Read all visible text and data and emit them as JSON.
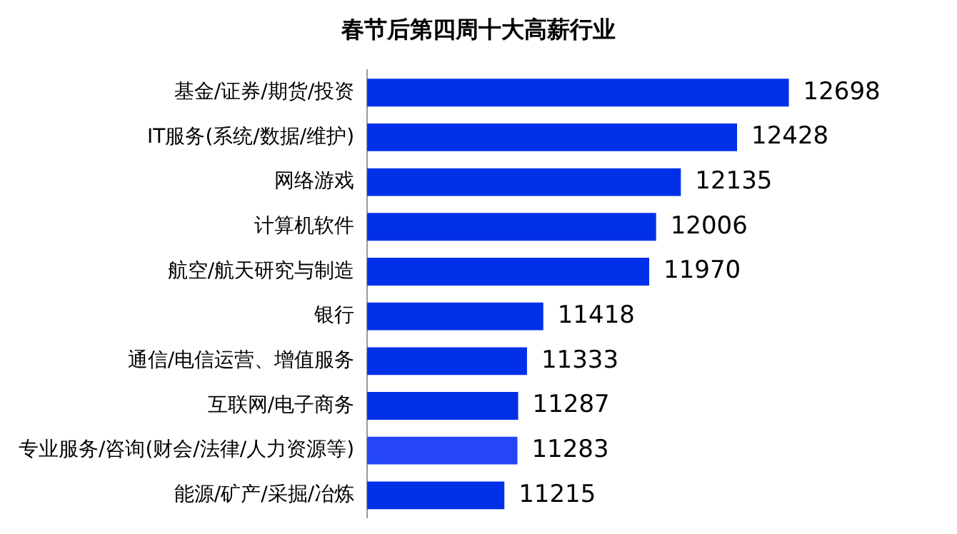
{
  "chart_data": {
    "type": "bar",
    "orientation": "horizontal",
    "title": "春节后第四周十大高薪行业",
    "categories": [
      "基金/证券/期货/投资",
      "IT服务(系统/数据/维护)",
      "网络游戏",
      "计算机软件",
      "航空/航天研究与制造",
      "银行",
      "通信/电信运营、增值服务",
      "互联网/电子商务",
      "专业服务/咨询(财会/法律/人力资源等)",
      "能源/矿产/采掘/冶炼"
    ],
    "values": [
      12698,
      12428,
      12135,
      12006,
      11970,
      11418,
      11333,
      11287,
      11283,
      11215
    ],
    "colors": [
      "#0030e8",
      "#0030e8",
      "#0030e8",
      "#0030e8",
      "#0030e8",
      "#0030e8",
      "#0030e8",
      "#0030e8",
      "#2446f8",
      "#0030e8"
    ],
    "tick_labels": "y",
    "data_labels": true,
    "grid": false,
    "legend": false
  }
}
